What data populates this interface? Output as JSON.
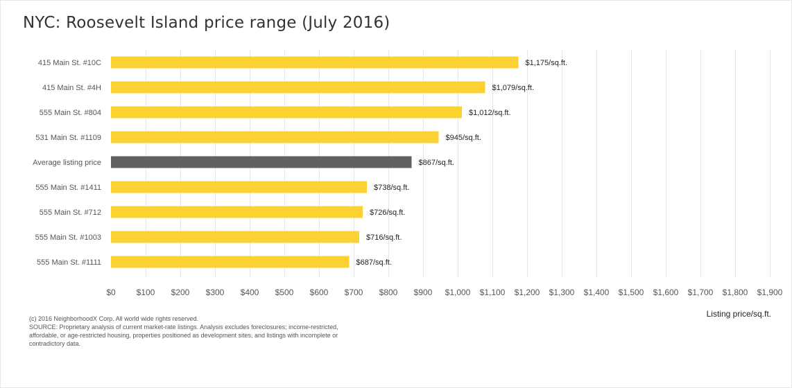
{
  "chart_data": {
    "type": "bar",
    "orientation": "horizontal",
    "title": "NYC: Roosevelt Island price range (July 2016)",
    "xlabel": "Listing price/sq.ft.",
    "ylabel": "",
    "xlim": [
      0,
      1900
    ],
    "tick_values": [
      0,
      100,
      200,
      300,
      400,
      500,
      600,
      700,
      800,
      900,
      1000,
      1100,
      1200,
      1300,
      1400,
      1500,
      1600,
      1700,
      1800,
      1900
    ],
    "tick_labels": [
      "$0",
      "$100",
      "$200",
      "$300",
      "$400",
      "$500",
      "$600",
      "$700",
      "$800",
      "$900",
      "$1,000",
      "$1,100",
      "$1,200",
      "$1,300",
      "$1,400",
      "$1,500",
      "$1,600",
      "$1,700",
      "$1,800",
      "$1,900"
    ],
    "grid": true,
    "categories": [
      "415 Main St. #10C",
      "415 Main St. #4H",
      "555 Main St. #804",
      "531 Main St. #1109",
      "Average listing price",
      "555 Main St. #1411",
      "555 Main St. #712",
      "555 Main St. #1003",
      "555 Main St. #1111"
    ],
    "values": [
      1175,
      1079,
      1012,
      945,
      867,
      738,
      726,
      716,
      687
    ],
    "data_labels": [
      "$1,175/sq.ft.",
      "$1,079/sq.ft.",
      "$1,012/sq.ft.",
      "$945/sq.ft.",
      "$867/sq.ft.",
      "$738/sq.ft.",
      "$726/sq.ft.",
      "$716/sq.ft.",
      "$687/sq.ft."
    ],
    "highlight": [
      false,
      false,
      false,
      false,
      true,
      false,
      false,
      false,
      false
    ],
    "colors": {
      "bar": "#fcd232",
      "highlight": "#616161",
      "grid": "#e3e6ea",
      "text": "#555555"
    }
  },
  "footnote": {
    "copyright": "(c) 2016 NeighborhoodX Corp. All world wide rights reserved.",
    "source": "SOURCE: Proprietary analysis of current market-rate listings. Analysis excludes foreclosures; income-restricted, affordable, or age-restricted housing, properties positioned as development sites, and listings with incomplete or contradictory data."
  }
}
